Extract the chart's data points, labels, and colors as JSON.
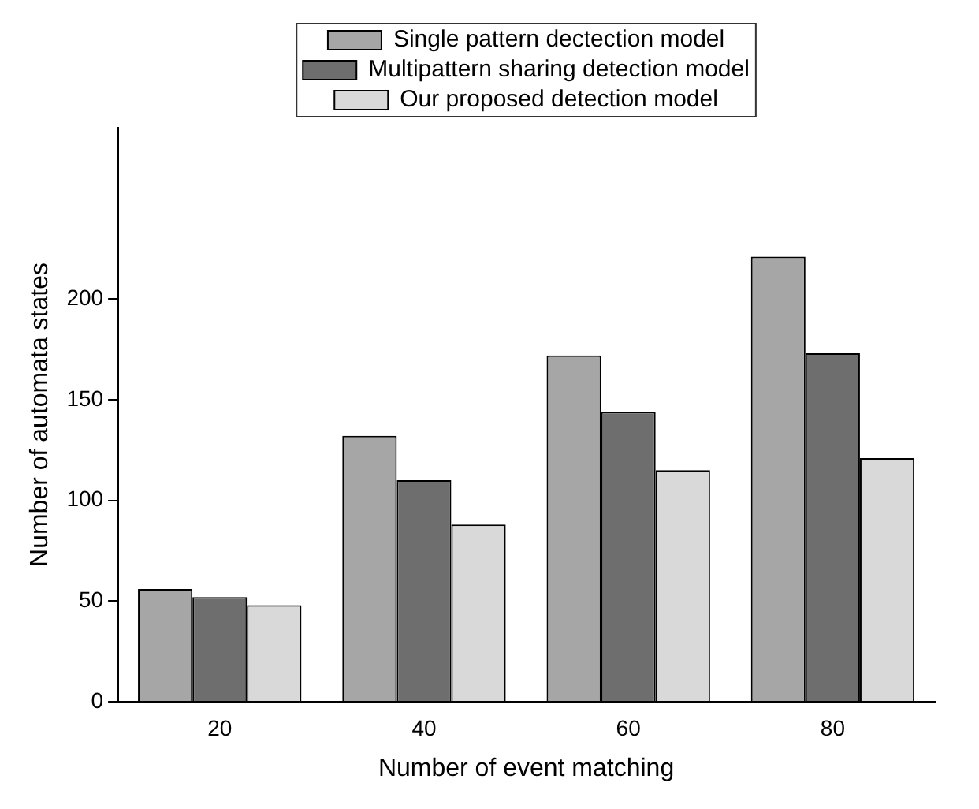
{
  "chart_data": {
    "type": "bar",
    "xlabel": "Number of event matching",
    "ylabel": "Number of automata states",
    "categories": [
      "20",
      "40",
      "60",
      "80"
    ],
    "series": [
      {
        "name": "Single pattern dectection model",
        "color": "#a6a6a6",
        "values": [
          56,
          132,
          172,
          221
        ]
      },
      {
        "name": "Multipattern sharing detection model",
        "color": "#6e6e6e",
        "values": [
          52,
          110,
          144,
          173
        ]
      },
      {
        "name": "Our proposed detection model",
        "color": "#d9d9d9",
        "values": [
          48,
          88,
          115,
          121
        ]
      }
    ],
    "ylim": [
      0,
      285
    ],
    "yticks": [
      0,
      50,
      100,
      150,
      200
    ],
    "grid": false,
    "legend": "top"
  }
}
